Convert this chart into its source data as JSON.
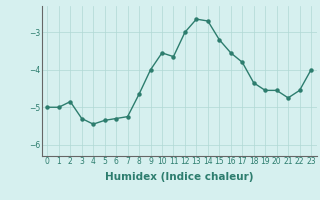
{
  "x": [
    0,
    1,
    2,
    3,
    4,
    5,
    6,
    7,
    8,
    9,
    10,
    11,
    12,
    13,
    14,
    15,
    16,
    17,
    18,
    19,
    20,
    21,
    22,
    23
  ],
  "y": [
    -5.0,
    -5.0,
    -4.85,
    -5.3,
    -5.45,
    -5.35,
    -5.3,
    -5.25,
    -4.65,
    -4.0,
    -3.55,
    -3.65,
    -3.0,
    -2.65,
    -2.7,
    -3.2,
    -3.55,
    -3.8,
    -4.35,
    -4.55,
    -4.55,
    -4.75,
    -4.55,
    -4.0
  ],
  "xlabel": "Humidex (Indice chaleur)",
  "ylim": [
    -6.3,
    -2.3
  ],
  "xlim": [
    -0.5,
    23.5
  ],
  "yticks": [
    -6,
    -5,
    -4,
    -3
  ],
  "xtick_labels": [
    "0",
    "1",
    "2",
    "3",
    "4",
    "5",
    "6",
    "7",
    "8",
    "9",
    "10",
    "11",
    "12",
    "13",
    "14",
    "15",
    "16",
    "17",
    "18",
    "19",
    "20",
    "21",
    "22",
    "23"
  ],
  "line_color": "#2d7d6e",
  "marker_color": "#2d7d6e",
  "bg_color": "#d6f0ef",
  "grid_color": "#b0d8d4",
  "tick_fontsize": 5.5,
  "xlabel_fontsize": 7.5,
  "marker_size": 2.2,
  "line_width": 1.0
}
